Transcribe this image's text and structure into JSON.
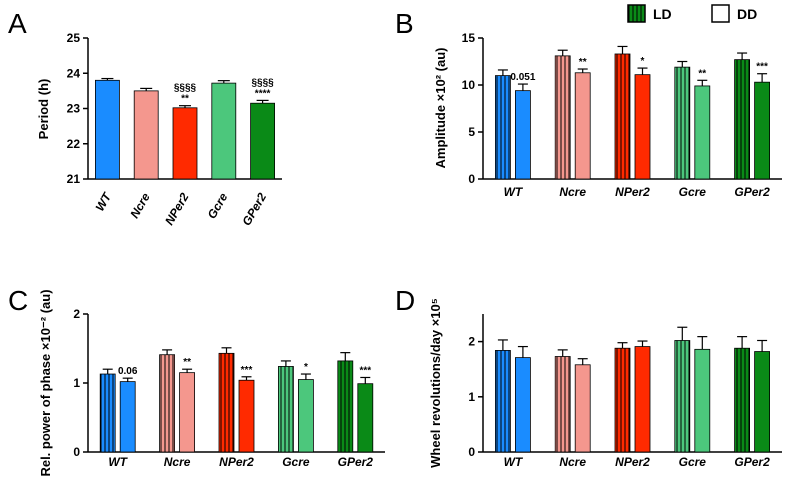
{
  "figure": {
    "legend": {
      "ld": "LD",
      "dd": "DD"
    }
  },
  "colors": {
    "WT": "#1a8cff",
    "Ncre": "#f4978e",
    "NPer2": "#ff2a00",
    "Gcre": "#4cc77c",
    "GPer2": "#0a8a17"
  },
  "chart_data": [
    {
      "panel": "A",
      "type": "bar",
      "ylabel": "Period (h)",
      "ylim": [
        21,
        25
      ],
      "yticks": [
        "21",
        "22",
        "23",
        "24",
        "25"
      ],
      "categories": [
        "WT",
        "Ncre",
        "NPer2",
        "Gcre",
        "GPer2"
      ],
      "values": [
        23.8,
        23.5,
        23.02,
        23.72,
        23.15
      ],
      "errors": [
        0.05,
        0.07,
        0.06,
        0.07,
        0.08
      ],
      "annotations": [
        "",
        "",
        "§§§§\n**",
        "",
        "§§§§\n****"
      ]
    },
    {
      "panel": "B",
      "type": "bar",
      "ylabel": "Amplitude ×10² (au)",
      "ylim": [
        0,
        15
      ],
      "yticks": [
        "0",
        "5",
        "10",
        "15"
      ],
      "categories": [
        "WT",
        "Ncre",
        "NPer2",
        "Gcre",
        "GPer2"
      ],
      "series": [
        {
          "name": "LD",
          "values": [
            11.0,
            13.1,
            13.3,
            11.9,
            12.7
          ],
          "errors": [
            0.6,
            0.6,
            0.8,
            0.6,
            0.7
          ]
        },
        {
          "name": "DD",
          "values": [
            9.4,
            11.3,
            11.1,
            9.9,
            10.3
          ],
          "errors": [
            0.7,
            0.4,
            0.7,
            0.6,
            0.9
          ]
        }
      ],
      "annotations": [
        "0.051",
        "**",
        "*",
        "**",
        "***"
      ]
    },
    {
      "panel": "C",
      "type": "bar",
      "ylabel": "Rel. power of phase ×10⁻² (au)",
      "ylim": [
        0,
        2
      ],
      "yticks": [
        "0",
        "1",
        "2"
      ],
      "categories": [
        "WT",
        "Ncre",
        "NPer2",
        "Gcre",
        "GPer2"
      ],
      "series": [
        {
          "name": "LD",
          "values": [
            1.13,
            1.41,
            1.43,
            1.24,
            1.32
          ],
          "errors": [
            0.07,
            0.07,
            0.08,
            0.08,
            0.12
          ]
        },
        {
          "name": "DD",
          "values": [
            1.02,
            1.15,
            1.04,
            1.05,
            0.99
          ],
          "errors": [
            0.05,
            0.05,
            0.05,
            0.08,
            0.09
          ]
        }
      ],
      "annotations": [
        "0.06",
        "**",
        "***",
        "*",
        "***"
      ]
    },
    {
      "panel": "D",
      "type": "bar",
      "ylabel": "Wheel revolutions/day ×10⁵",
      "ylim": [
        0,
        2.5
      ],
      "yticks": [
        "0",
        "1",
        "2"
      ],
      "categories": [
        "WT",
        "Ncre",
        "NPer2",
        "Gcre",
        "GPer2"
      ],
      "series": [
        {
          "name": "LD",
          "values": [
            1.84,
            1.73,
            1.88,
            2.02,
            1.88
          ],
          "errors": [
            0.19,
            0.12,
            0.1,
            0.24,
            0.21
          ]
        },
        {
          "name": "DD",
          "values": [
            1.71,
            1.58,
            1.91,
            1.86,
            1.82
          ],
          "errors": [
            0.2,
            0.11,
            0.1,
            0.23,
            0.2
          ]
        }
      ],
      "annotations": [
        "",
        "",
        "",
        "",
        ""
      ]
    }
  ]
}
